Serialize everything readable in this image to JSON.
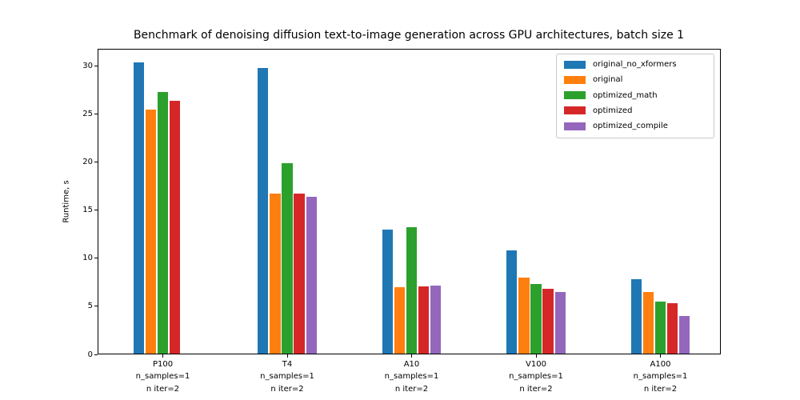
{
  "chart_data": {
    "type": "bar",
    "title": "Benchmark of denoising diffusion text-to-image generation across GPU architectures, batch size 1",
    "xlabel": "",
    "ylabel": "Runtime, s",
    "ylim": [
      0,
      31.8
    ],
    "yticks": [
      0,
      5,
      10,
      15,
      20,
      25,
      30
    ],
    "grid": false,
    "legend_position": "upper right",
    "categories": [
      {
        "gpu": "P100",
        "sub1": "n_samples=1",
        "sub2": "n iter=2"
      },
      {
        "gpu": "T4",
        "sub1": "n_samples=1",
        "sub2": "n iter=2"
      },
      {
        "gpu": "A10",
        "sub1": "n_samples=1",
        "sub2": "n iter=2"
      },
      {
        "gpu": "V100",
        "sub1": "n_samples=1",
        "sub2": "n iter=2"
      },
      {
        "gpu": "A100",
        "sub1": "n_samples=1",
        "sub2": "n iter=2"
      }
    ],
    "series": [
      {
        "name": "original_no_xformers",
        "color": "#1f77b4",
        "values": [
          30.4,
          29.8,
          13.0,
          10.8,
          7.8
        ]
      },
      {
        "name": "original",
        "color": "#ff7f0e",
        "values": [
          25.5,
          16.7,
          7.0,
          8.0,
          6.5
        ]
      },
      {
        "name": "optimized_math",
        "color": "#2ca02c",
        "values": [
          27.3,
          19.9,
          13.2,
          7.3,
          5.5
        ]
      },
      {
        "name": "optimized",
        "color": "#d62728",
        "values": [
          26.4,
          16.7,
          7.1,
          6.8,
          5.3
        ]
      },
      {
        "name": "optimized_compile",
        "color": "#9467bd",
        "values": [
          null,
          16.4,
          7.2,
          6.5,
          4.0
        ]
      }
    ]
  }
}
